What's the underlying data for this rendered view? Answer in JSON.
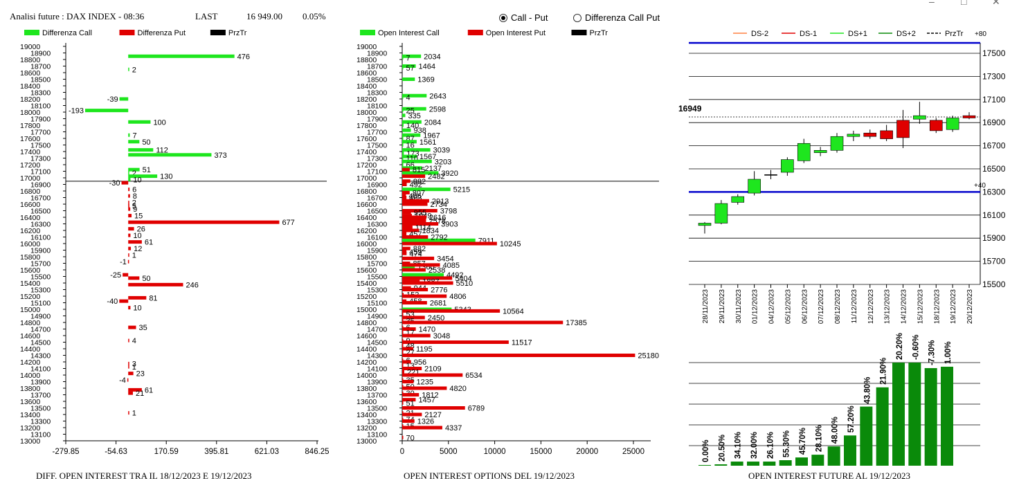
{
  "header": {
    "title": "Analisi future : DAX INDEX - 08:36",
    "last_label": "LAST",
    "last_value": "16 949.00",
    "last_change": "0.05%"
  },
  "radio": [
    {
      "label": "Call - Put",
      "selected": true
    },
    {
      "label": "Differenza Call Put",
      "selected": false
    }
  ],
  "window_controls": [
    "–",
    "□",
    "✕"
  ],
  "footers": {
    "left": "DIFF. OPEN INTEREST TRA IL 18/12/2023 E 19/12/2023",
    "middle": "OPEN INTEREST OPTIONS DEL 19/12/2023",
    "right": "OPEN INTEREST FUTURE AL 19/12/2023"
  },
  "colors": {
    "green": "#1ee61e",
    "red": "#e00000",
    "black": "#000000",
    "blue": "#0000cc",
    "dark_green": "#0a8a0a",
    "orange": "#ff8040"
  },
  "chart_data": [
    {
      "type": "bar",
      "orientation": "horizontal",
      "legend": [
        {
          "name": "Differenza Call",
          "color": "#1ee61e"
        },
        {
          "name": "Differenza Put",
          "color": "#e00000"
        },
        {
          "name": "PrzTr",
          "color": "#000000"
        }
      ],
      "legend_position": "top-left",
      "strike_ticks": [
        13000,
        13100,
        13200,
        13300,
        13400,
        13500,
        13600,
        13700,
        13800,
        13900,
        14000,
        14100,
        14200,
        14300,
        14400,
        14500,
        14600,
        14700,
        14800,
        14900,
        15000,
        15100,
        15200,
        15300,
        15400,
        15500,
        15600,
        15700,
        15800,
        15900,
        16000,
        16100,
        16200,
        16300,
        16400,
        16500,
        16600,
        16700,
        16800,
        16900,
        17000,
        17100,
        17200,
        17300,
        17400,
        17500,
        17600,
        17700,
        17800,
        17900,
        18000,
        18100,
        18200,
        18300,
        18400,
        18500,
        18600,
        18700,
        18800,
        18900,
        19000
      ],
      "x_ticks": [
        "-279.85",
        "-54.63",
        "170.59",
        "395.81",
        "621.03",
        "846.25"
      ],
      "xlim": [
        -279.85,
        846.25
      ],
      "price_line": 16949,
      "call_bars": [
        {
          "strike": 18850,
          "value": 476
        },
        {
          "strike": 18650,
          "value": 2
        },
        {
          "strike": 18200,
          "value": -39
        },
        {
          "strike": 18025,
          "value": -193
        },
        {
          "strike": 17850,
          "value": 100
        },
        {
          "strike": 17650,
          "value": 7
        },
        {
          "strike": 17550,
          "value": 50
        },
        {
          "strike": 17425,
          "value": 112
        },
        {
          "strike": 17350,
          "value": 373
        },
        {
          "strike": 17125,
          "value": 51
        },
        {
          "strike": 17075,
          "value": 2
        },
        {
          "strike": 17025,
          "value": 130
        },
        {
          "strike": 16975,
          "value": 10
        }
      ],
      "put_bars": [
        {
          "strike": 16925,
          "value": -30
        },
        {
          "strike": 16825,
          "value": 6
        },
        {
          "strike": 16725,
          "value": 8
        },
        {
          "strike": 16625,
          "value": 2
        },
        {
          "strike": 16575,
          "value": 5
        },
        {
          "strike": 16525,
          "value": 9
        },
        {
          "strike": 16425,
          "value": 15
        },
        {
          "strike": 16325,
          "value": 677
        },
        {
          "strike": 16225,
          "value": 26
        },
        {
          "strike": 16125,
          "value": 10
        },
        {
          "strike": 16025,
          "value": 61
        },
        {
          "strike": 15925,
          "value": 12
        },
        {
          "strike": 15825,
          "value": 1
        },
        {
          "strike": 15725,
          "value": -1
        },
        {
          "strike": 15525,
          "value": -25
        },
        {
          "strike": 15475,
          "value": 50
        },
        {
          "strike": 15375,
          "value": 246
        },
        {
          "strike": 15175,
          "value": 81
        },
        {
          "strike": 15125,
          "value": -40
        },
        {
          "strike": 15025,
          "value": 10
        },
        {
          "strike": 14725,
          "value": 35
        },
        {
          "strike": 14525,
          "value": 4
        },
        {
          "strike": 14175,
          "value": 3
        },
        {
          "strike": 14125,
          "value": 1
        },
        {
          "strike": 14025,
          "value": 23
        },
        {
          "strike": 13925,
          "value": -4
        },
        {
          "strike": 13775,
          "value": 61
        },
        {
          "strike": 13725,
          "value": 21
        },
        {
          "strike": 13425,
          "value": 1
        }
      ]
    },
    {
      "type": "bar",
      "orientation": "horizontal",
      "legend": [
        {
          "name": "Open Interest Call",
          "color": "#1ee61e"
        },
        {
          "name": "Open Interest Put",
          "color": "#e00000"
        },
        {
          "name": "PrzTr",
          "color": "#000000"
        }
      ],
      "legend_position": "top-left",
      "x_ticks": [
        "0",
        "5000",
        "10000",
        "15000",
        "20000",
        "25000"
      ],
      "xlim": [
        0,
        28000
      ],
      "price_line": 16949,
      "call_bars": [
        {
          "strike": 18850,
          "value": 2034
        },
        {
          "strike": 18825,
          "value": 7
        },
        {
          "strike": 18700,
          "value": 1464
        },
        {
          "strike": 18675,
          "value": 57
        },
        {
          "strike": 18500,
          "value": 1369
        },
        {
          "strike": 18250,
          "value": 2643
        },
        {
          "strike": 18225,
          "value": 4
        },
        {
          "strike": 18050,
          "value": 2598
        },
        {
          "strike": 18025,
          "value": 25
        },
        {
          "strike": 17950,
          "value": 335
        },
        {
          "strike": 17850,
          "value": 2084
        },
        {
          "strike": 17800,
          "value": 140
        },
        {
          "strike": 17725,
          "value": 938
        },
        {
          "strike": 17650,
          "value": 1967
        },
        {
          "strike": 17600,
          "value": 87
        },
        {
          "strike": 17550,
          "value": 1561
        },
        {
          "strike": 17500,
          "value": 16
        },
        {
          "strike": 17425,
          "value": 3039
        },
        {
          "strike": 17375,
          "value": 173
        },
        {
          "strike": 17325,
          "value": 1567
        },
        {
          "strike": 17300,
          "value": 110
        },
        {
          "strike": 17250,
          "value": 3203
        },
        {
          "strike": 17200,
          "value": 66
        },
        {
          "strike": 17150,
          "value": 2137
        },
        {
          "strike": 17075,
          "value": 3920
        },
        {
          "strike": 16825,
          "value": 5215
        },
        {
          "strike": 16050,
          "value": 7911
        },
        {
          "strike": 15650,
          "value": 1360
        },
        {
          "strike": 15525,
          "value": 4492
        },
        {
          "strike": 15000,
          "value": 5343
        }
      ],
      "put_bars": [
        {
          "strike": 17125,
          "value": 815
        },
        {
          "strike": 17025,
          "value": 2482
        },
        {
          "strike": 16950,
          "value": 882
        },
        {
          "strike": 16900,
          "value": 492
        },
        {
          "strike": 16775,
          "value": 807
        },
        {
          "strike": 16725,
          "value": 406
        },
        {
          "strike": 16700,
          "value": 463
        },
        {
          "strike": 16650,
          "value": 2913
        },
        {
          "strike": 16600,
          "value": 2734
        },
        {
          "strike": 16500,
          "value": 3798
        },
        {
          "strike": 16475,
          "value": 955
        },
        {
          "strike": 16425,
          "value": 1049
        },
        {
          "strike": 16400,
          "value": 2616
        },
        {
          "strike": 16350,
          "value": 2578
        },
        {
          "strike": 16300,
          "value": 3903
        },
        {
          "strike": 16250,
          "value": 1114
        },
        {
          "strike": 16200,
          "value": 1834
        },
        {
          "strike": 16150,
          "value": 457
        },
        {
          "strike": 16100,
          "value": 2792
        },
        {
          "strike": 16000,
          "value": 10245
        },
        {
          "strike": 15925,
          "value": 882
        },
        {
          "strike": 15875,
          "value": 459
        },
        {
          "strike": 15850,
          "value": 474
        },
        {
          "strike": 15775,
          "value": 3454
        },
        {
          "strike": 15700,
          "value": 857
        },
        {
          "strike": 15675,
          "value": 4085
        },
        {
          "strike": 15600,
          "value": 2538
        },
        {
          "strike": 15475,
          "value": 5404
        },
        {
          "strike": 15425,
          "value": 1887
        },
        {
          "strike": 15400,
          "value": 5510
        },
        {
          "strike": 15325,
          "value": 944
        },
        {
          "strike": 15300,
          "value": 2776
        },
        {
          "strike": 15225,
          "value": 152
        },
        {
          "strike": 15200,
          "value": 4806
        },
        {
          "strike": 15125,
          "value": 458
        },
        {
          "strike": 15100,
          "value": 2681
        },
        {
          "strike": 14975,
          "value": 10564
        },
        {
          "strike": 14925,
          "value": 53
        },
        {
          "strike": 14875,
          "value": 2450
        },
        {
          "strike": 14825,
          "value": 35
        },
        {
          "strike": 14800,
          "value": 17385
        },
        {
          "strike": 14725,
          "value": 6
        },
        {
          "strike": 14700,
          "value": 1470
        },
        {
          "strike": 14650,
          "value": 17
        },
        {
          "strike": 14600,
          "value": 3048
        },
        {
          "strike": 14525,
          "value": 9
        },
        {
          "strike": 14500,
          "value": 11517
        },
        {
          "strike": 14450,
          "value": 48
        },
        {
          "strike": 14400,
          "value": 1195
        },
        {
          "strike": 14350,
          "value": 27
        },
        {
          "strike": 14300,
          "value": 25180
        },
        {
          "strike": 14225,
          "value": 6
        },
        {
          "strike": 14200,
          "value": 956
        },
        {
          "strike": 14150,
          "value": 13
        },
        {
          "strike": 14100,
          "value": 2109
        },
        {
          "strike": 14050,
          "value": 221
        },
        {
          "strike": 14000,
          "value": 6534
        },
        {
          "strike": 13925,
          "value": 35
        },
        {
          "strike": 13900,
          "value": 1235
        },
        {
          "strike": 13825,
          "value": 50
        },
        {
          "strike": 13800,
          "value": 4820
        },
        {
          "strike": 13725,
          "value": 30
        },
        {
          "strike": 13700,
          "value": 1812
        },
        {
          "strike": 13625,
          "value": 1457
        },
        {
          "strike": 13575,
          "value": 51
        },
        {
          "strike": 13500,
          "value": 6789
        },
        {
          "strike": 13425,
          "value": 21
        },
        {
          "strike": 13400,
          "value": 2127
        },
        {
          "strike": 13325,
          "value": 74
        },
        {
          "strike": 13300,
          "value": 1326
        },
        {
          "strike": 13225,
          "value": 15
        },
        {
          "strike": 13200,
          "value": 4337
        },
        {
          "strike": 13050,
          "value": 70
        }
      ]
    },
    {
      "type": "candlestick",
      "legend": [
        {
          "name": "DS-2",
          "color": "#ff8040",
          "style": "solid"
        },
        {
          "name": "DS-1",
          "color": "#e00000",
          "style": "solid"
        },
        {
          "name": "DS+1",
          "color": "#1ee61e",
          "style": "solid"
        },
        {
          "name": "DS+2",
          "color": "#0a8a0a",
          "style": "solid"
        },
        {
          "name": "PrzTr",
          "color": "#000000",
          "style": "dashed"
        }
      ],
      "legend_position": "top",
      "extra_labels": [
        "+80",
        "+40"
      ],
      "y_ticks": [
        15500,
        15700,
        15900,
        16100,
        16300,
        16500,
        16700,
        16900,
        17100,
        17300,
        17500
      ],
      "ylim": [
        15500,
        17600
      ],
      "blue_lines": [
        17590,
        16300
      ],
      "price_line": 16949,
      "price_label": "16949",
      "dates": [
        "28/11/2023",
        "29/11/2023",
        "30/11/2023",
        "01/12/2023",
        "04/12/2023",
        "05/12/2023",
        "06/12/2023",
        "07/12/2023",
        "08/12/2023",
        "11/12/2023",
        "12/12/2023",
        "13/12/2023",
        "14/12/2023",
        "15/12/2023",
        "18/12/2023",
        "19/12/2023",
        "20/12/2023"
      ],
      "candles": [
        {
          "open": 16010,
          "close": 16030,
          "high": 16040,
          "low": 15940
        },
        {
          "open": 16030,
          "close": 16200,
          "high": 16230,
          "low": 16020
        },
        {
          "open": 16210,
          "close": 16260,
          "high": 16280,
          "low": 16190
        },
        {
          "open": 16290,
          "close": 16410,
          "high": 16480,
          "low": 16270
        },
        {
          "open": 16450,
          "close": 16450,
          "high": 16490,
          "low": 16410
        },
        {
          "open": 16470,
          "close": 16580,
          "high": 16600,
          "low": 16440
        },
        {
          "open": 16570,
          "close": 16720,
          "high": 16760,
          "low": 16550
        },
        {
          "open": 16640,
          "close": 16660,
          "high": 16690,
          "low": 16610
        },
        {
          "open": 16660,
          "close": 16780,
          "high": 16810,
          "low": 16640
        },
        {
          "open": 16780,
          "close": 16800,
          "high": 16830,
          "low": 16740
        },
        {
          "open": 16810,
          "close": 16780,
          "high": 16840,
          "low": 16760
        },
        {
          "open": 16830,
          "close": 16760,
          "high": 16880,
          "low": 16740
        },
        {
          "open": 16920,
          "close": 16770,
          "high": 17010,
          "low": 16680
        },
        {
          "open": 16930,
          "close": 16960,
          "high": 17080,
          "low": 16890
        },
        {
          "open": 16920,
          "close": 16830,
          "high": 16940,
          "low": 16810
        },
        {
          "open": 16840,
          "close": 16940,
          "high": 16960,
          "low": 16820
        },
        {
          "open": 16960,
          "close": 16940,
          "high": 16990,
          "low": 16930
        }
      ]
    },
    {
      "type": "bar",
      "values": [
        0,
        1,
        3,
        3,
        3,
        4,
        6,
        8,
        14,
        22,
        43,
        57,
        75,
        75,
        71,
        72
      ],
      "value_labels": [
        "0.00%",
        "20.50%",
        "34.10%",
        "32.00%",
        "26.10%",
        "55.30%",
        "45.70%",
        "28.10%",
        "48.00%",
        "57.20%",
        "43.80%",
        "21.90%",
        "20.20%",
        "-0.60%",
        "-7.30%",
        "1.00%"
      ],
      "color": "#0a8a0a"
    }
  ]
}
